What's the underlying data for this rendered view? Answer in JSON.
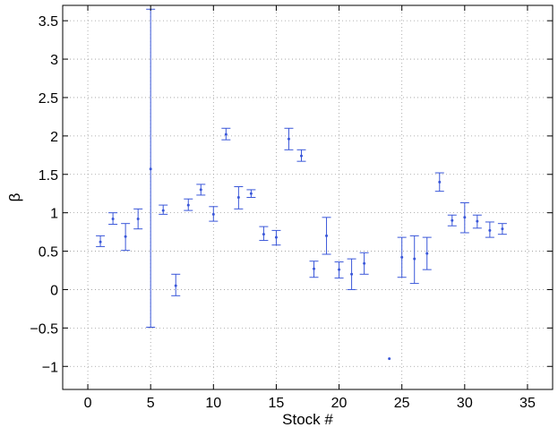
{
  "chart_data": {
    "type": "scatter",
    "title": "",
    "xlabel": "Stock #",
    "ylabel": "β",
    "xlim": [
      -2,
      37
    ],
    "ylim": [
      -1.3,
      3.7
    ],
    "xticks": [
      0,
      5,
      10,
      15,
      20,
      25,
      30,
      35
    ],
    "xtick_labels": [
      "0",
      "5",
      "10",
      "15",
      "20",
      "25",
      "30",
      "35"
    ],
    "yticks": [
      -1,
      -0.5,
      0,
      0.5,
      1,
      1.5,
      2,
      2.5,
      3,
      3.5
    ],
    "ytick_labels": [
      "−1",
      "−0.5",
      "0",
      "0.5",
      "1",
      "1.5",
      "2",
      "2.5",
      "3",
      "3.5"
    ],
    "grid": true,
    "color": "#3a57d9",
    "series": [
      {
        "points": [
          {
            "x": 1,
            "y": 0.62,
            "low": 0.56,
            "high": 0.7
          },
          {
            "x": 2,
            "y": 0.92,
            "low": 0.85,
            "high": 1.0
          },
          {
            "x": 3,
            "y": 0.69,
            "low": 0.51,
            "high": 0.86
          },
          {
            "x": 4,
            "y": 0.92,
            "low": 0.79,
            "high": 1.05
          },
          {
            "x": 5,
            "y": 1.57,
            "low": -0.49,
            "high": 3.65
          },
          {
            "x": 6,
            "y": 1.03,
            "low": 0.98,
            "high": 1.1
          },
          {
            "x": 7,
            "y": 0.05,
            "low": -0.08,
            "high": 0.2
          },
          {
            "x": 8,
            "y": 1.1,
            "low": 1.03,
            "high": 1.18
          },
          {
            "x": 9,
            "y": 1.3,
            "low": 1.23,
            "high": 1.37
          },
          {
            "x": 10,
            "y": 0.98,
            "low": 0.89,
            "high": 1.08
          },
          {
            "x": 11,
            "y": 2.02,
            "low": 1.95,
            "high": 2.1
          },
          {
            "x": 12,
            "y": 1.2,
            "low": 1.05,
            "high": 1.34
          },
          {
            "x": 13,
            "y": 1.25,
            "low": 1.2,
            "high": 1.3
          },
          {
            "x": 14,
            "y": 0.72,
            "low": 0.64,
            "high": 0.82
          },
          {
            "x": 15,
            "y": 0.68,
            "low": 0.58,
            "high": 0.77
          },
          {
            "x": 16,
            "y": 1.96,
            "low": 1.82,
            "high": 2.1
          },
          {
            "x": 17,
            "y": 1.74,
            "low": 1.67,
            "high": 1.82
          },
          {
            "x": 18,
            "y": 0.27,
            "low": 0.16,
            "high": 0.37
          },
          {
            "x": 19,
            "y": 0.7,
            "low": 0.46,
            "high": 0.94
          },
          {
            "x": 20,
            "y": 0.26,
            "low": 0.15,
            "high": 0.36
          },
          {
            "x": 21,
            "y": 0.2,
            "low": 0.0,
            "high": 0.4
          },
          {
            "x": 22,
            "y": 0.34,
            "low": 0.2,
            "high": 0.48
          },
          {
            "x": 24,
            "y": -0.9
          },
          {
            "x": 25,
            "y": 0.42,
            "low": 0.16,
            "high": 0.68
          },
          {
            "x": 26,
            "y": 0.4,
            "low": 0.08,
            "high": 0.7
          },
          {
            "x": 27,
            "y": 0.47,
            "low": 0.26,
            "high": 0.68
          },
          {
            "x": 28,
            "y": 1.4,
            "low": 1.28,
            "high": 1.52
          },
          {
            "x": 29,
            "y": 0.9,
            "low": 0.83,
            "high": 0.97
          },
          {
            "x": 30,
            "y": 0.94,
            "low": 0.74,
            "high": 1.13
          },
          {
            "x": 31,
            "y": 0.89,
            "low": 0.8,
            "high": 0.97
          },
          {
            "x": 32,
            "y": 0.77,
            "low": 0.68,
            "high": 0.88
          },
          {
            "x": 33,
            "y": 0.79,
            "low": 0.72,
            "high": 0.86
          }
        ]
      }
    ]
  }
}
